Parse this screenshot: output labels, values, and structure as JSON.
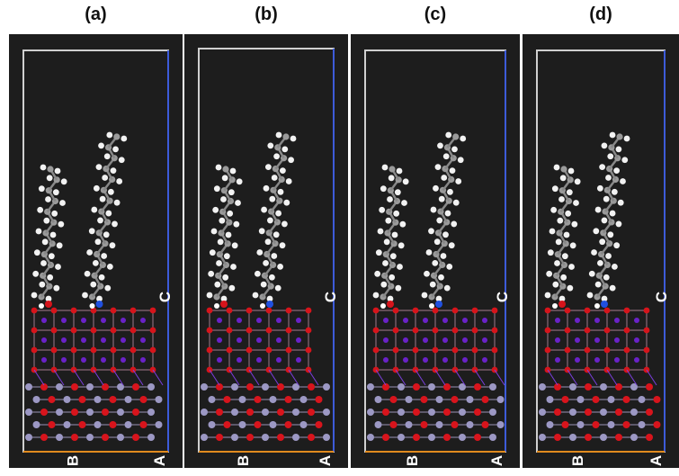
{
  "panels": [
    {
      "label": "(a)",
      "axis_c": "C",
      "axis_b": "B",
      "axis_a": "A"
    },
    {
      "label": "(b)",
      "axis_c": "C",
      "axis_b": "B",
      "axis_a": "A"
    },
    {
      "label": "(c)",
      "axis_c": "C",
      "axis_b": "B",
      "axis_a": "A"
    },
    {
      "label": "(d)",
      "axis_c": "C",
      "axis_b": "B",
      "axis_a": "A"
    }
  ]
}
